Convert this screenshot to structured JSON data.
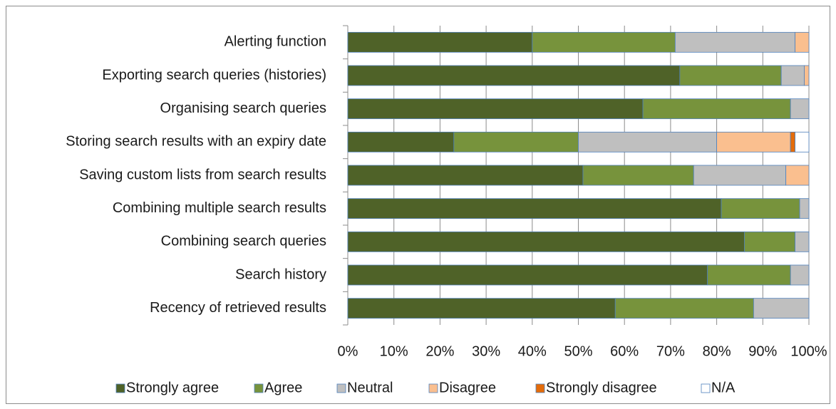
{
  "chart_data": {
    "type": "stacked-barh",
    "categories": [
      "Alerting function",
      "Exporting search queries (histories)",
      "Organising search queries",
      "Storing search results with an expiry date",
      "Saving custom lists from search results",
      "Combining multiple search results",
      "Combining search queries",
      "Search history",
      "Recency of retrieved results"
    ],
    "series": [
      {
        "name": "Strongly agree",
        "color": "#4f6228",
        "values": [
          40,
          72,
          64,
          23,
          51,
          81,
          86,
          78,
          58
        ]
      },
      {
        "name": "Agree",
        "color": "#77933c",
        "values": [
          31,
          22,
          32,
          27,
          24,
          17,
          11,
          18,
          30
        ]
      },
      {
        "name": "Neutral",
        "color": "#bfbfbf",
        "values": [
          26,
          5,
          4,
          30,
          20,
          2,
          3,
          4,
          12
        ]
      },
      {
        "name": "Disagree",
        "color": "#fabf8f",
        "values": [
          3,
          1,
          0,
          16,
          5,
          0,
          0,
          0,
          0
        ]
      },
      {
        "name": "Strongly disagree",
        "color": "#e46c0a",
        "values": [
          0,
          0,
          0,
          1,
          0,
          0,
          0,
          0,
          0
        ]
      },
      {
        "name": "N/A",
        "color": "#ffffff",
        "values": [
          0,
          0,
          0,
          3,
          0,
          0,
          0,
          0,
          0
        ]
      }
    ],
    "xlim": [
      0,
      100
    ],
    "xticks": [
      {
        "value": 0,
        "label": "0%"
      },
      {
        "value": 10,
        "label": "10%"
      },
      {
        "value": 20,
        "label": "20%"
      },
      {
        "value": 30,
        "label": "30%"
      },
      {
        "value": 40,
        "label": "40%"
      },
      {
        "value": 50,
        "label": "50%"
      },
      {
        "value": 60,
        "label": "60%"
      },
      {
        "value": 70,
        "label": "70%"
      },
      {
        "value": 80,
        "label": "80%"
      },
      {
        "value": 90,
        "label": "90%"
      },
      {
        "value": 100,
        "label": "100%"
      }
    ],
    "grid": true,
    "legend": "bottom"
  }
}
